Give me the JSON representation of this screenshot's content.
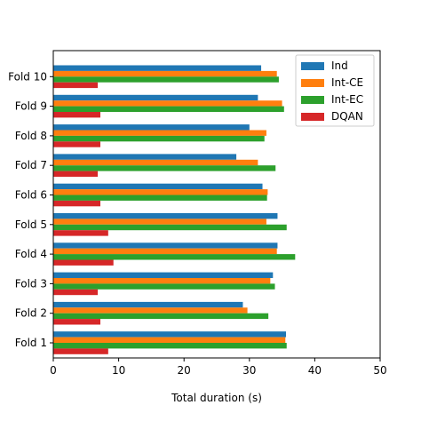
{
  "chart_data": {
    "type": "bar",
    "orientation": "horizontal",
    "title": "",
    "xlabel": "Total duration (s)",
    "ylabel": "",
    "xlim": [
      0,
      50
    ],
    "xticks": [
      0,
      10,
      20,
      30,
      40,
      50
    ],
    "grid": false,
    "legend_position": "top-right",
    "categories": [
      "Fold 1",
      "Fold 2",
      "Fold 3",
      "Fold 4",
      "Fold 5",
      "Fold 6",
      "Fold 7",
      "Fold 8",
      "Fold 9",
      "Fold 10"
    ],
    "series": [
      {
        "name": "Ind",
        "color": "#1f77b4",
        "values": [
          35.6,
          29.0,
          33.6,
          34.3,
          34.3,
          32.0,
          28.0,
          30.0,
          31.3,
          31.8
        ]
      },
      {
        "name": "Int-CE",
        "color": "#ff7f0e",
        "values": [
          35.5,
          29.7,
          33.2,
          34.2,
          32.6,
          32.8,
          31.3,
          32.6,
          35.0,
          34.2
        ]
      },
      {
        "name": "Int-EC",
        "color": "#2ca02c",
        "values": [
          35.7,
          32.9,
          33.9,
          37.0,
          35.7,
          32.7,
          34.0,
          32.3,
          35.3,
          34.5
        ]
      },
      {
        "name": "DQAN",
        "color": "#d62728",
        "values": [
          8.4,
          7.2,
          6.8,
          9.2,
          8.4,
          7.2,
          6.8,
          7.2,
          7.2,
          6.8
        ]
      }
    ]
  }
}
